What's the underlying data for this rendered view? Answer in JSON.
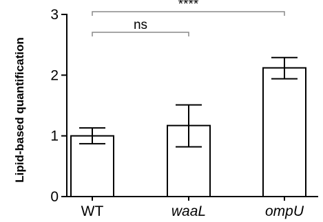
{
  "chart_data": {
    "type": "bar",
    "categories": [
      "WT",
      "waaL",
      "ompU"
    ],
    "category_italic": [
      false,
      true,
      true
    ],
    "values": [
      1.0,
      1.17,
      2.12
    ],
    "error_low": [
      0.87,
      0.82,
      1.94
    ],
    "error_high": [
      1.13,
      1.51,
      2.29
    ],
    "ylabel": "Lipid-based quantification",
    "xlabel": "",
    "ylim": [
      0,
      3
    ],
    "yticks": [
      0,
      1,
      2,
      3
    ],
    "grid": false,
    "legend": "none",
    "bar_fill": "#ffffff",
    "bar_edge": "#000000",
    "significance": [
      {
        "from": "WT",
        "to": "waaL",
        "label": "ns"
      },
      {
        "from": "WT",
        "to": "ompU",
        "label": "****"
      }
    ]
  }
}
